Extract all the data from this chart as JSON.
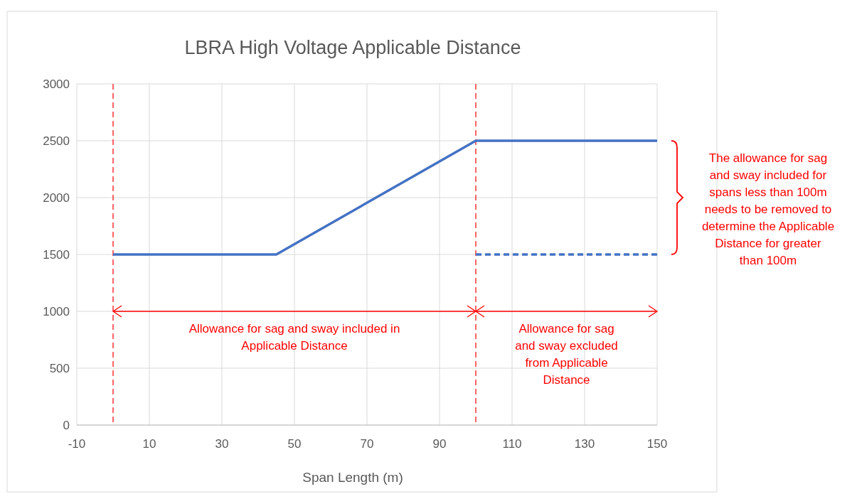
{
  "chart_data": {
    "type": "line",
    "title": "LBRA High Voltage Applicable Distance",
    "xlabel": "Span Length (m)",
    "xlim": [
      -10,
      150
    ],
    "xticks": [
      -10,
      10,
      30,
      50,
      70,
      90,
      110,
      130,
      150
    ],
    "ylim": [
      0,
      3000
    ],
    "yticks": [
      0,
      500,
      1000,
      1500,
      2000,
      2500,
      3000
    ],
    "grid": true,
    "series": [
      {
        "color": "#4472c4",
        "x": [
          0,
          45,
          100,
          150
        ],
        "values": [
          1500,
          1500,
          2500,
          2500
        ],
        "line_style": "solid"
      },
      {
        "color": "#4472c4",
        "x": [
          100,
          150
        ],
        "values": [
          1500,
          1500
        ],
        "line_style": "dashed"
      }
    ],
    "ref_lines": [
      {
        "axis": "x",
        "value": 0,
        "color": "#ff0000",
        "line_style": "dashed"
      },
      {
        "axis": "x",
        "value": 100,
        "color": "#ff0000",
        "line_style": "dashed"
      }
    ],
    "annotations": [
      "Allowance for sag and sway included in Applicable Distance",
      "Allowance for sag and sway excluded from Applicable Distance",
      "The allowance for sag and sway included for spans less than 100m needs to be removed to determine the Applicable Distance for greater than 100m"
    ]
  }
}
